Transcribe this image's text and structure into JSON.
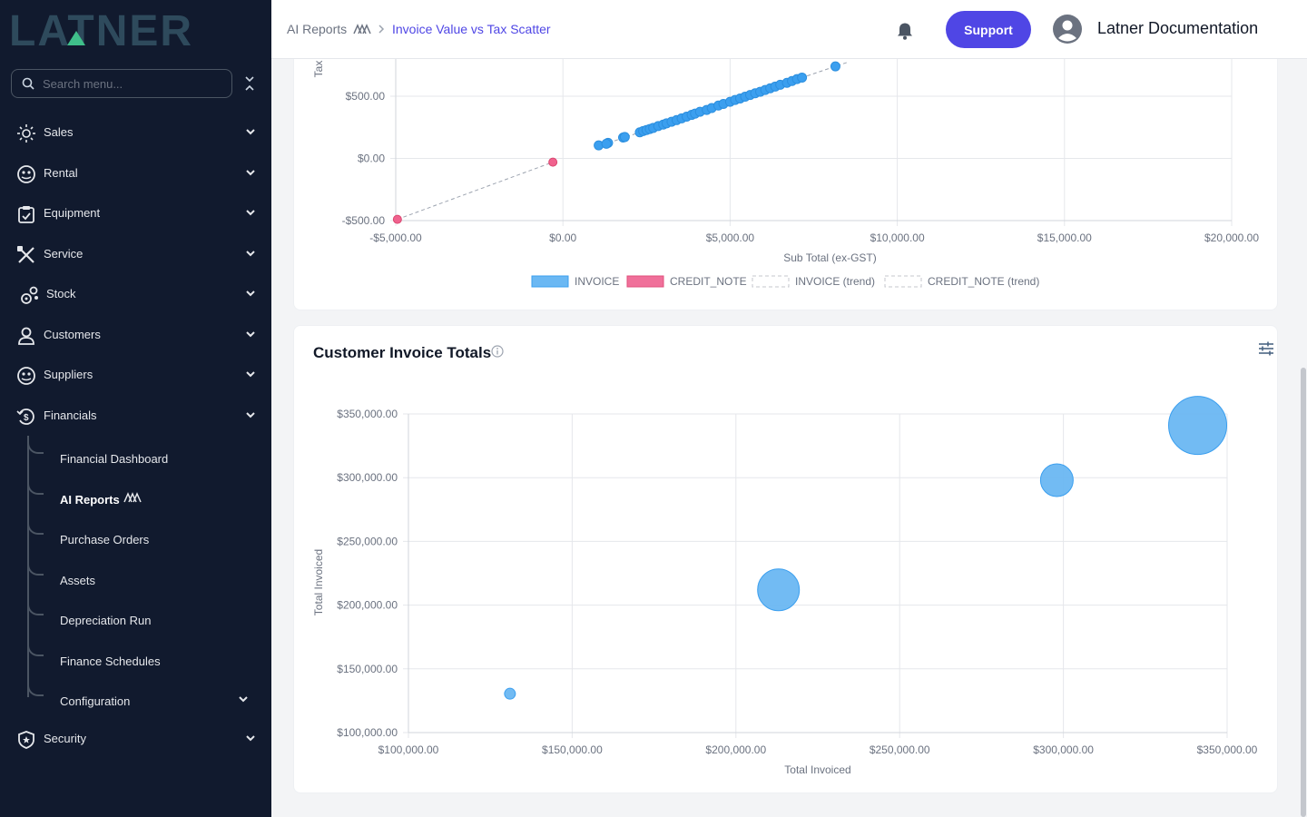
{
  "brand": {
    "logo_text": "LATNER"
  },
  "search": {
    "placeholder": "Search menu..."
  },
  "sidebar": {
    "items": [
      {
        "label": "Sales",
        "icon": "sales-icon"
      },
      {
        "label": "Rental",
        "icon": "rental-icon"
      },
      {
        "label": "Equipment",
        "icon": "equipment-icon"
      },
      {
        "label": "Service",
        "icon": "service-icon"
      },
      {
        "label": "Stock",
        "icon": "stock-icon"
      },
      {
        "label": "Customers",
        "icon": "customers-icon"
      },
      {
        "label": "Suppliers",
        "icon": "suppliers-icon"
      },
      {
        "label": "Financials",
        "icon": "financials-icon",
        "expanded": true
      },
      {
        "label": "Security",
        "icon": "security-icon"
      }
    ],
    "financials_sub": [
      {
        "label": "Financial Dashboard"
      },
      {
        "label": "AI Reports",
        "active": true
      },
      {
        "label": "Purchase Orders"
      },
      {
        "label": "Assets"
      },
      {
        "label": "Depreciation Run"
      },
      {
        "label": "Finance Schedules"
      },
      {
        "label": "Configuration",
        "has_children": true
      }
    ]
  },
  "header": {
    "breadcrumb_parent": "AI Reports",
    "breadcrumb_current": "Invoice Value vs Tax Scatter",
    "support_label": "Support",
    "user_name": "Latner Documentation"
  },
  "colors": {
    "accent": "#4f46e5",
    "invoice": "#3b9fef",
    "credit_note": "#f0628e",
    "sidebar_bg": "#111a2e"
  },
  "chart1": {
    "legend": [
      "INVOICE",
      "CREDIT_NOTE",
      "INVOICE (trend)",
      "CREDIT_NOTE (trend)"
    ]
  },
  "chart2": {
    "title": "Customer Invoice Totals"
  },
  "chart_data": [
    {
      "type": "scatter",
      "xlabel": "Sub Total (ex-GST)",
      "ylabel": "Tax",
      "xlim": [
        -5000,
        20000
      ],
      "xticks": [
        "-$5,000.00",
        "$0.00",
        "$5,000.00",
        "$10,000.00",
        "$15,000.00",
        "$20,000.00"
      ],
      "ytick_values": [
        -500,
        0,
        500
      ],
      "yticks": [
        "-$500.00",
        "$0.00",
        "$500.00"
      ],
      "legend_position": "bottom",
      "series": [
        {
          "name": "INVOICE",
          "color": "#3b9fef",
          "points": [
            [
              1070,
              105
            ],
            [
              1350,
              125
            ],
            [
              1300,
              118
            ],
            [
              1800,
              168
            ],
            [
              1850,
              172
            ],
            [
              2300,
              210
            ],
            [
              2400,
              220
            ],
            [
              2500,
              228
            ],
            [
              2600,
              236
            ],
            [
              2700,
              245
            ],
            [
              2850,
              260
            ],
            [
              3000,
              272
            ],
            [
              3100,
              282
            ],
            [
              3250,
              295
            ],
            [
              3400,
              308
            ],
            [
              3550,
              322
            ],
            [
              3700,
              336
            ],
            [
              3850,
              350
            ],
            [
              3950,
              360
            ],
            [
              4100,
              375
            ],
            [
              4300,
              390
            ],
            [
              4450,
              405
            ],
            [
              4650,
              425
            ],
            [
              4800,
              438
            ],
            [
              5000,
              455
            ],
            [
              5150,
              470
            ],
            [
              5300,
              482
            ],
            [
              5450,
              496
            ],
            [
              5600,
              510
            ],
            [
              5750,
              524
            ],
            [
              5900,
              536
            ],
            [
              6050,
              550
            ],
            [
              6200,
              564
            ],
            [
              6350,
              578
            ],
            [
              6500,
              592
            ],
            [
              6700,
              608
            ],
            [
              6850,
              622
            ],
            [
              7000,
              638
            ],
            [
              7150,
              650
            ],
            [
              8150,
              740
            ]
          ]
        },
        {
          "name": "CREDIT_NOTE",
          "color": "#f0628e",
          "points": [
            [
              -300,
              -30
            ],
            [
              -4950,
              -490
            ]
          ]
        }
      ],
      "trends": [
        {
          "name": "INVOICE (trend)",
          "from": [
            1000,
            92
          ],
          "to": [
            8500,
            772
          ]
        },
        {
          "name": "CREDIT_NOTE (trend)",
          "from": [
            -4950,
            -490
          ],
          "to": [
            -300,
            -30
          ]
        }
      ]
    },
    {
      "type": "bubble",
      "title": "Customer Invoice Totals",
      "xlabel": "Total Invoiced",
      "ylabel": "Total Invoiced",
      "xlim": [
        100000,
        350000
      ],
      "ylim": [
        100000,
        350000
      ],
      "xticks": [
        "$100,000.00",
        "$150,000.00",
        "$200,000.00",
        "$250,000.00",
        "$300,000.00",
        "$350,000.00"
      ],
      "yticks": [
        "$100,000.00",
        "$150,000.00",
        "$200,000.00",
        "$250,000.00",
        "$300,000.00",
        "$350,000.00"
      ],
      "series": [
        {
          "name": "Customer Invoice Totals",
          "color": "#3b9fef",
          "points": [
            {
              "x": 131000,
              "y": 130500,
              "r": 6
            },
            {
              "x": 213000,
              "y": 212000,
              "r": 23
            },
            {
              "x": 298000,
              "y": 298000,
              "r": 18
            },
            {
              "x": 341000,
              "y": 341000,
              "r": 32
            }
          ]
        }
      ]
    }
  ]
}
